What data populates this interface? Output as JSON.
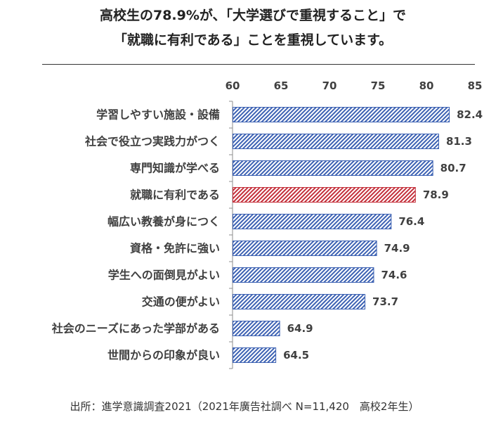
{
  "colors": {
    "text": "#404040",
    "axis": "#8c8c8c",
    "divider": "#333333",
    "bar_blue": "#3d62b3",
    "bar_highlight_red": "#c4303b"
  },
  "chart_data": {
    "type": "bar",
    "orientation": "horizontal",
    "title": [
      "高校生の78.9%が、「大学選びで重視すること」で",
      "「就職に有利である」ことを重視しています。"
    ],
    "categories": [
      "学習しやすい施設・設備",
      "社会で役立つ実践力がつく",
      "専門知識が学べる",
      "就職に有利である",
      "幅広い教養が身につく",
      "資格・免許に強い",
      "学生への面倒見がよい",
      "交通の便がよい",
      "社会のニーズにあった学部がある",
      "世間からの印象が良い"
    ],
    "values": [
      82.4,
      81.3,
      80.7,
      78.9,
      76.4,
      74.9,
      74.6,
      73.7,
      64.9,
      64.5
    ],
    "bar_colors": [
      "#3d62b3",
      "#3d62b3",
      "#3d62b3",
      "#c4303b",
      "#3d62b3",
      "#3d62b3",
      "#3d62b3",
      "#3d62b3",
      "#3d62b3",
      "#3d62b3"
    ],
    "xlim": [
      60,
      85
    ],
    "xticks": [
      60,
      65,
      70,
      75,
      80,
      85
    ],
    "xaxis_position": "top",
    "data_labels": true,
    "grid": false,
    "legend": "none"
  },
  "footer": {
    "source": "出所：進学意識調査2021（2021年廣告社調べ N=11,420　高校2年生）"
  }
}
